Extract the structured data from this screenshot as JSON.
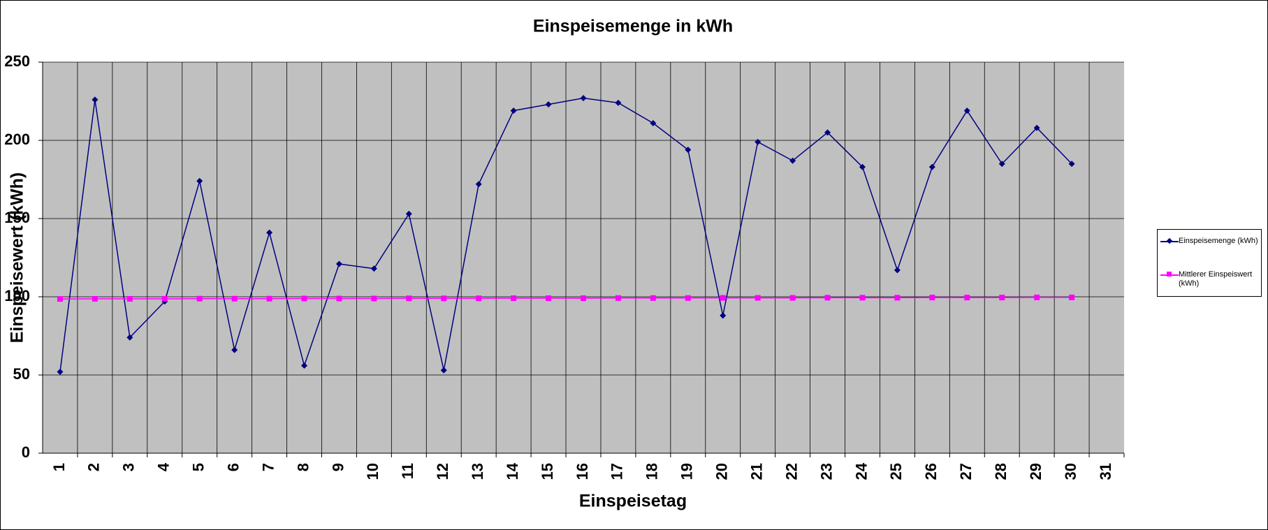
{
  "chart_data": {
    "type": "line",
    "title": "Einspeisemenge in kWh",
    "x_label": "Einspeisetag",
    "y_label": "Einspeisewert (kWh)",
    "categories": [
      "1",
      "2",
      "3",
      "4",
      "5",
      "6",
      "7",
      "8",
      "9",
      "10",
      "11",
      "12",
      "13",
      "14",
      "15",
      "16",
      "17",
      "18",
      "19",
      "20",
      "21",
      "22",
      "23",
      "24",
      "25",
      "26",
      "27",
      "28",
      "29",
      "30",
      "31"
    ],
    "series": [
      {
        "name": "Einspeisemenge (kWh)",
        "color": "#000080",
        "marker": "diamond",
        "values": [
          52,
          226,
          74,
          97,
          174,
          66,
          141,
          56,
          121,
          118,
          153,
          53,
          172,
          219,
          223,
          227,
          224,
          211,
          194,
          88,
          199,
          187,
          205,
          183,
          117,
          183,
          219,
          185,
          208,
          185,
          null
        ]
      },
      {
        "name": "Mittlerer Einspeiswert (kWh)",
        "color": "#ff00ff",
        "marker": "square",
        "values": [
          98.6,
          98.7,
          98.7,
          98.7,
          98.8,
          98.8,
          98.8,
          98.9,
          98.9,
          98.9,
          99.0,
          99.0,
          99.0,
          99.1,
          99.1,
          99.1,
          99.2,
          99.2,
          99.2,
          99.3,
          99.3,
          99.3,
          99.4,
          99.4,
          99.4,
          99.5,
          99.5,
          99.5,
          99.6,
          99.6,
          null
        ]
      }
    ],
    "ylim": [
      0,
      250
    ],
    "yticks": [
      0,
      50,
      100,
      150,
      200,
      250
    ],
    "grid": true,
    "legend": "right"
  }
}
